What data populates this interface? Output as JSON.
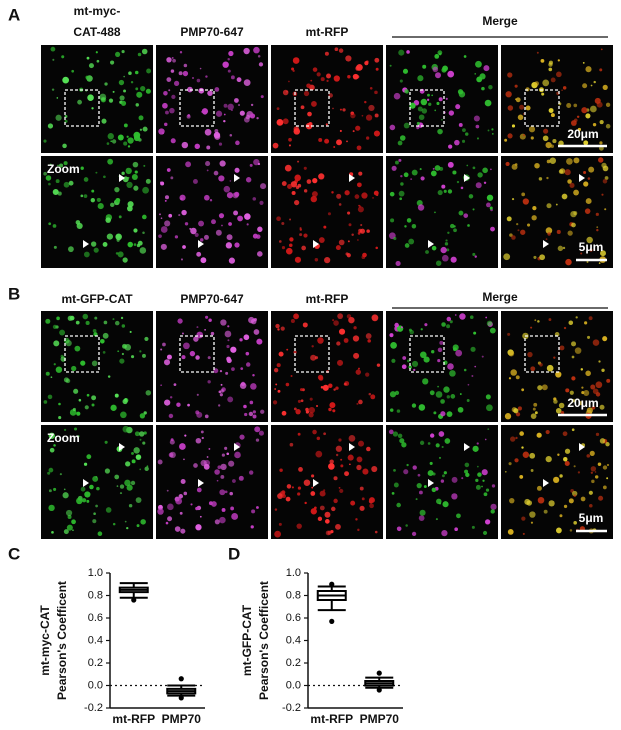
{
  "panels": [
    {
      "label": "A",
      "columns": [
        [
          "mt-myc-",
          "CAT-488"
        ],
        [
          "PMP70-647"
        ],
        [
          "mt-RFP"
        ]
      ],
      "merge": "Merge",
      "zoom": "Zoom",
      "scale_bars": [
        "20μm",
        "5μm"
      ]
    },
    {
      "label": "B",
      "columns": [
        [
          "mt-GFP-CAT"
        ],
        [
          "PMP70-647"
        ],
        [
          "mt-RFP"
        ]
      ],
      "merge": "Merge",
      "zoom": "Zoom",
      "scale_bars": [
        "20μm",
        "5μm"
      ]
    }
  ],
  "chart_data": [
    {
      "type": "box",
      "label": "C",
      "ylabel": [
        "mt-myc-CAT",
        "Pearson's Coefficent"
      ],
      "categories": [
        "mt-RFP",
        "PMP70"
      ],
      "color": "#000000",
      "boxes": [
        {
          "min": 0.78,
          "q1": 0.83,
          "median": 0.85,
          "q3": 0.87,
          "max": 0.91,
          "outliers": [
            0.76
          ]
        },
        {
          "min": -0.09,
          "q1": -0.07,
          "median": -0.05,
          "q3": -0.03,
          "max": 0.0,
          "outliers": [
            0.06,
            -0.11
          ]
        }
      ],
      "ylim": [
        -0.2,
        1.0
      ],
      "yticks": [
        -0.2,
        {
          "value": 0,
          "label": "0.0"
        },
        0.2,
        0.4,
        0.6,
        0.8,
        {
          "value": 1,
          "label": "1.0"
        }
      ],
      "reference_line": 0
    },
    {
      "type": "box",
      "label": "D",
      "ylabel": [
        "mt-GFP-CAT",
        "Pearson's Coefficent"
      ],
      "categories": [
        "mt-RFP",
        "PMP70"
      ],
      "color": "#000000",
      "boxes": [
        {
          "min": 0.67,
          "q1": 0.76,
          "median": 0.8,
          "q3": 0.84,
          "max": 0.88,
          "outliers": [
            0.9,
            0.57
          ]
        },
        {
          "min": -0.02,
          "q1": 0.0,
          "median": 0.02,
          "q3": 0.04,
          "max": 0.07,
          "outliers": [
            0.11,
            -0.04
          ]
        }
      ],
      "ylim": [
        -0.2,
        1.0
      ],
      "yticks": [
        -0.2,
        {
          "value": 0,
          "label": "0.0"
        },
        0.2,
        0.4,
        0.6,
        0.8,
        {
          "value": 1,
          "label": "1.0"
        }
      ],
      "reference_line": 0
    }
  ]
}
